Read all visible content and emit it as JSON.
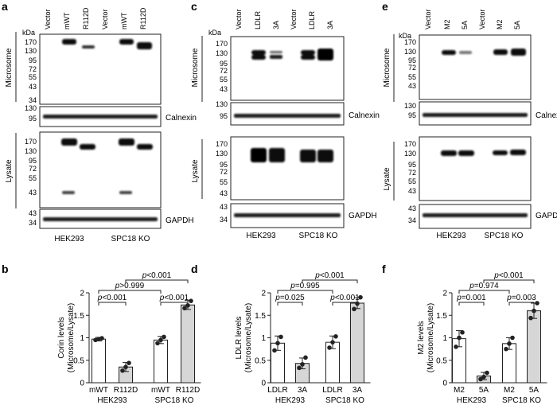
{
  "panels": {
    "a": {
      "letter": "a",
      "lanes": [
        "Vector",
        "mWT",
        "R112D",
        "Vector",
        "mWT",
        "R112D"
      ],
      "kda": "kDa",
      "upper_markers": [
        "170",
        "130",
        "95",
        "72",
        "55",
        "43",
        "34"
      ],
      "calnexin_markers": [
        "130",
        "95"
      ],
      "lower_markers": [
        "170",
        "130",
        "95",
        "72",
        "55",
        "43"
      ],
      "gapdh_markers": [
        "43",
        "34"
      ],
      "upper_side": "Microsome",
      "lower_side": "Lysate",
      "calnexin": "Calnexin",
      "gapdh": "GAPDH",
      "cells": [
        "HEK293",
        "SPC18 KO"
      ]
    },
    "c": {
      "letter": "c",
      "lanes": [
        "Vector",
        "LDLR",
        "3A",
        "Vector",
        "LDLR",
        "3A"
      ],
      "kda": "kDa",
      "upper_markers": [
        "170",
        "130",
        "95",
        "72",
        "55",
        "43"
      ],
      "calnexin_markers": [
        "130",
        "95"
      ],
      "lower_markers": [
        "170",
        "130",
        "95",
        "72",
        "55",
        "43"
      ],
      "gapdh_markers": [
        "43",
        "34"
      ],
      "upper_side": "Microsome",
      "lower_side": "Lysate",
      "calnexin": "Calnexin",
      "gapdh": "GAPDH",
      "cells": [
        "HEK293",
        "SPC18 KO"
      ]
    },
    "e": {
      "letter": "e",
      "lanes": [
        "Vector",
        "M2",
        "5A",
        "Vector",
        "M2",
        "5A"
      ],
      "kda": "kDa",
      "upper_markers": [
        "170",
        "130",
        "95",
        "72",
        "55",
        "43"
      ],
      "calnexin_markers": [
        "130",
        "95"
      ],
      "lower_markers": [
        "170",
        "130",
        "95",
        "72",
        "55",
        "43"
      ],
      "gapdh_markers": [
        "43",
        "34"
      ],
      "upper_side": "Microsome",
      "lower_side": "Lysate",
      "calnexin": "Calnexin",
      "gapdh": "GAPDH",
      "cells": [
        "HEK293",
        "SPC18 KO"
      ]
    }
  },
  "chart_data": [
    {
      "panel": "b",
      "type": "bar",
      "ylabel_line1": "Corin levels",
      "ylabel_line2": "(Microsome/Lysate)",
      "ylim": [
        0,
        2
      ],
      "yticks": [
        "0",
        "0.5",
        "1",
        "1.5",
        "2"
      ],
      "categories": [
        "mWT",
        "R112D",
        "mWT",
        "R112D"
      ],
      "groups": [
        "HEK293",
        "SPC18 KO"
      ],
      "values": [
        0.97,
        0.35,
        0.95,
        1.73
      ],
      "errors": [
        0.04,
        0.1,
        0.08,
        0.1
      ],
      "points": [
        [
          0.95,
          0.99,
          0.97
        ],
        [
          0.27,
          0.44,
          0.35
        ],
        [
          0.88,
          1.02,
          0.95
        ],
        [
          1.66,
          1.82,
          1.72
        ]
      ],
      "filled": [
        false,
        true,
        false,
        true
      ],
      "stats": [
        {
          "label": "p<0.001",
          "from": 0,
          "to": 1,
          "tier": 0
        },
        {
          "label": "p<0.001",
          "from": 2,
          "to": 3,
          "tier": 0
        },
        {
          "label": "p>0.999",
          "from": 0,
          "to": 2,
          "tier": 1
        },
        {
          "label": "p<0.001",
          "from": 1,
          "to": 3,
          "tier": 2
        }
      ]
    },
    {
      "panel": "d",
      "type": "bar",
      "ylabel_line1": "LDLR levels",
      "ylabel_line2": "(Microsome/Lysate)",
      "ylim": [
        0,
        2
      ],
      "yticks": [
        "0",
        "0.5",
        "1",
        "1.5",
        "2"
      ],
      "categories": [
        "LDLR",
        "3A",
        "LDLR",
        "3A"
      ],
      "groups": [
        "HEK293",
        "SPC18 KO"
      ],
      "values": [
        0.88,
        0.43,
        0.9,
        1.77
      ],
      "errors": [
        0.16,
        0.12,
        0.14,
        0.12
      ],
      "points": [
        [
          0.72,
          1.02,
          0.88
        ],
        [
          0.33,
          0.56,
          0.41
        ],
        [
          0.78,
          1.03,
          0.9
        ],
        [
          1.64,
          1.9,
          1.76
        ]
      ],
      "filled": [
        false,
        true,
        false,
        true
      ],
      "stats": [
        {
          "label": "p=0.025",
          "from": 0,
          "to": 1,
          "tier": 0
        },
        {
          "label": "p<0.001",
          "from": 2,
          "to": 3,
          "tier": 0
        },
        {
          "label": "p=0.995",
          "from": 0,
          "to": 2,
          "tier": 1
        },
        {
          "label": "p<0.001",
          "from": 1,
          "to": 3,
          "tier": 2
        }
      ]
    },
    {
      "panel": "f",
      "type": "bar",
      "ylabel_line1": "M2 levels",
      "ylabel_line2": "(Microsome/Lysate)",
      "ylim": [
        0,
        2
      ],
      "yticks": [
        "0",
        "0.5",
        "1",
        "1.5",
        "2"
      ],
      "categories": [
        "M2",
        "5A",
        "M2",
        "5A"
      ],
      "groups": [
        "HEK293",
        "SPC18 KO"
      ],
      "values": [
        0.98,
        0.15,
        0.87,
        1.6
      ],
      "errors": [
        0.18,
        0.08,
        0.13,
        0.17
      ],
      "points": [
        [
          0.8,
          1.12,
          1.0
        ],
        [
          0.08,
          0.22,
          0.13
        ],
        [
          0.75,
          1.0,
          0.87
        ],
        [
          1.44,
          1.77,
          1.6
        ]
      ],
      "filled": [
        false,
        true,
        false,
        true
      ],
      "stats": [
        {
          "label": "p=0.001",
          "from": 0,
          "to": 1,
          "tier": 0
        },
        {
          "label": "p=0.003",
          "from": 2,
          "to": 3,
          "tier": 0
        },
        {
          "label": "p=0.974",
          "from": 0,
          "to": 2,
          "tier": 1
        },
        {
          "label": "p<0.001",
          "from": 1,
          "to": 3,
          "tier": 2
        }
      ]
    }
  ]
}
